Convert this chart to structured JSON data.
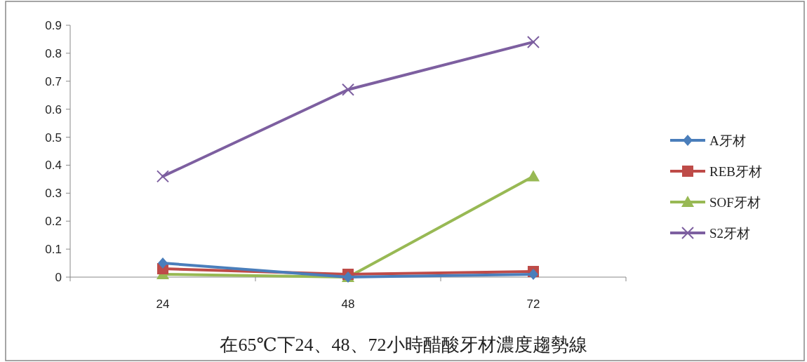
{
  "chart_data": {
    "type": "line",
    "title": "在65℃下24、48、72小時醋酸牙材濃度趨勢線",
    "categories": [
      "24",
      "48",
      "72"
    ],
    "series": [
      {
        "name": "A牙材",
        "color": "#4a7ebb",
        "marker": "diamond",
        "values": [
          0.05,
          0.0,
          0.01
        ]
      },
      {
        "name": "REB牙材",
        "color": "#be4b48",
        "marker": "square",
        "values": [
          0.03,
          0.01,
          0.02
        ]
      },
      {
        "name": "SOF牙材",
        "color": "#98b954",
        "marker": "triangle",
        "values": [
          0.01,
          0.0,
          0.36
        ]
      },
      {
        "name": "S2牙材",
        "color": "#7d5fa0",
        "marker": "cross",
        "values": [
          0.36,
          0.67,
          0.84
        ]
      }
    ],
    "ylim": [
      0,
      0.9
    ],
    "yticks": [
      0,
      0.1,
      0.2,
      0.3,
      0.4,
      0.5,
      0.6,
      0.7,
      0.8,
      0.9
    ],
    "legend": "right",
    "grid": false
  }
}
